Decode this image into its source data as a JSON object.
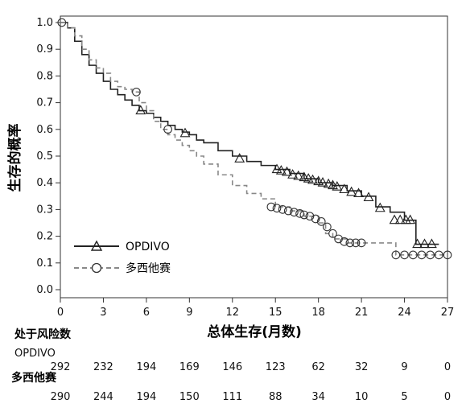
{
  "chart_data": {
    "type": "line",
    "xlabel": "总体生存(月数)",
    "ylabel": "生存的概率",
    "xlim": [
      0,
      27
    ],
    "ylim": [
      0,
      1.0
    ],
    "xticks": [
      "0",
      "3",
      "6",
      "9",
      "12",
      "15",
      "18",
      "21",
      "24",
      "27"
    ],
    "yticks": [
      "0.0",
      "0.1",
      "0.2",
      "0.3",
      "0.4",
      "0.5",
      "0.6",
      "0.7",
      "0.8",
      "0.9",
      "1.0"
    ],
    "legend_position": "bottom-left",
    "series": [
      {
        "name": "OPDIVO",
        "line_style": "solid",
        "color": "#222222",
        "marker": "triangle",
        "x": [
          0,
          0.5,
          1,
          1.5,
          2,
          2.5,
          3,
          3.5,
          4,
          4.5,
          5,
          5.5,
          6,
          6.5,
          7,
          7.5,
          8,
          8.5,
          9,
          9.5,
          10,
          11,
          12,
          13,
          14,
          15,
          16,
          17,
          18,
          19,
          20,
          21,
          22,
          23,
          24,
          24.3,
          24.8,
          26.4
        ],
        "y": [
          1.0,
          0.98,
          0.93,
          0.88,
          0.84,
          0.81,
          0.78,
          0.75,
          0.73,
          0.71,
          0.69,
          0.67,
          0.66,
          0.645,
          0.63,
          0.615,
          0.6,
          0.59,
          0.58,
          0.56,
          0.55,
          0.52,
          0.5,
          0.48,
          0.465,
          0.45,
          0.435,
          0.415,
          0.4,
          0.39,
          0.37,
          0.35,
          0.31,
          0.29,
          0.26,
          0.26,
          0.17,
          0.17
        ],
        "censor_x": [
          5.6,
          8.7,
          12.5,
          15.1,
          15.4,
          15.8,
          16.2,
          16.6,
          17.0,
          17.3,
          17.6,
          18.0,
          18.3,
          18.7,
          19.0,
          19.3,
          19.8,
          20.3,
          20.8,
          21.5,
          22.3,
          23.3,
          23.7,
          24.1,
          24.4,
          24.9,
          25.4,
          25.9
        ],
        "censor_y": [
          0.67,
          0.585,
          0.49,
          0.45,
          0.445,
          0.44,
          0.43,
          0.425,
          0.42,
          0.415,
          0.41,
          0.405,
          0.4,
          0.395,
          0.39,
          0.385,
          0.375,
          0.365,
          0.36,
          0.345,
          0.305,
          0.26,
          0.26,
          0.26,
          0.26,
          0.17,
          0.17,
          0.17
        ]
      },
      {
        "name": "多西他赛",
        "line_style": "dashed",
        "color": "#888888",
        "marker": "circle",
        "x": [
          0,
          0.5,
          1,
          1.5,
          2,
          2.5,
          3,
          3.5,
          4,
          4.5,
          5,
          5.5,
          6,
          6.5,
          7,
          7.5,
          8,
          8.5,
          9,
          9.5,
          10,
          11,
          12,
          13,
          14,
          15,
          16,
          17,
          18,
          18.5,
          19,
          20,
          21,
          22,
          23,
          23.4,
          26.8
        ],
        "y": [
          1.0,
          0.98,
          0.95,
          0.9,
          0.86,
          0.83,
          0.81,
          0.78,
          0.76,
          0.75,
          0.74,
          0.7,
          0.67,
          0.63,
          0.6,
          0.58,
          0.56,
          0.54,
          0.52,
          0.5,
          0.47,
          0.43,
          0.39,
          0.36,
          0.34,
          0.31,
          0.295,
          0.275,
          0.25,
          0.21,
          0.19,
          0.175,
          0.175,
          0.175,
          0.175,
          0.13,
          0.13
        ]
      }
    ],
    "censor_docetaxel_x": [
      0.1,
      5.3,
      7.5,
      14.7,
      15.1,
      15.5,
      15.9,
      16.3,
      16.7,
      17.0,
      17.4,
      17.8,
      18.2,
      18.6,
      19.0,
      19.4,
      19.8,
      20.2,
      20.6,
      21.0,
      23.4,
      24.0,
      24.6,
      25.2,
      25.8,
      26.4,
      27.0
    ],
    "censor_docetaxel_y": [
      1.0,
      0.74,
      0.6,
      0.31,
      0.305,
      0.3,
      0.295,
      0.29,
      0.285,
      0.28,
      0.275,
      0.265,
      0.255,
      0.235,
      0.21,
      0.19,
      0.18,
      0.175,
      0.175,
      0.175,
      0.13,
      0.13,
      0.13,
      0.13,
      0.13,
      0.13,
      0.13
    ],
    "risk_table": {
      "title": "处于风险数",
      "groups": [
        {
          "label": "OPDIVO",
          "values": [
            "292",
            "232",
            "194",
            "169",
            "146",
            "123",
            "62",
            "32",
            "9",
            "0"
          ]
        },
        {
          "label": "多西他赛",
          "values": [
            "290",
            "244",
            "194",
            "150",
            "111",
            "88",
            "34",
            "10",
            "5",
            "0"
          ]
        }
      ]
    }
  }
}
